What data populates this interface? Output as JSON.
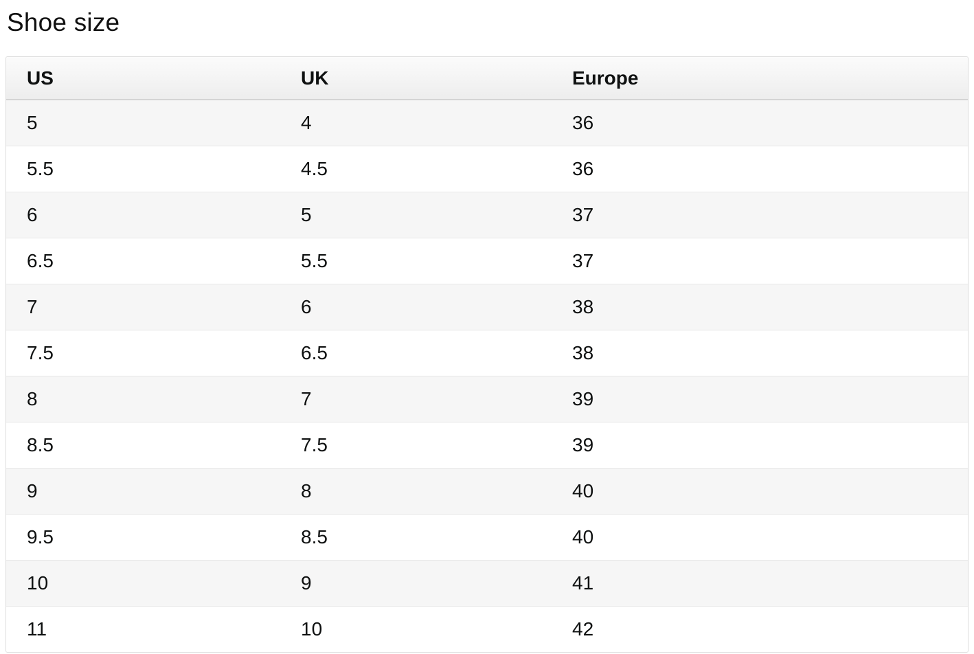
{
  "section": {
    "title": "Shoe size"
  },
  "table": {
    "columns": [
      {
        "key": "us",
        "label": "US"
      },
      {
        "key": "uk",
        "label": "UK"
      },
      {
        "key": "europe",
        "label": "Europe"
      }
    ],
    "rows": [
      {
        "us": "5",
        "uk": "4",
        "europe": "36"
      },
      {
        "us": "5.5",
        "uk": "4.5",
        "europe": "36"
      },
      {
        "us": "6",
        "uk": "5",
        "europe": "37"
      },
      {
        "us": "6.5",
        "uk": "5.5",
        "europe": "37"
      },
      {
        "us": "7",
        "uk": "6",
        "europe": "38"
      },
      {
        "us": "7.5",
        "uk": "6.5",
        "europe": "38"
      },
      {
        "us": "8",
        "uk": "7",
        "europe": "39"
      },
      {
        "us": "8.5",
        "uk": "7.5",
        "europe": "39"
      },
      {
        "us": "9",
        "uk": "8",
        "europe": "40"
      },
      {
        "us": "9.5",
        "uk": "8.5",
        "europe": "40"
      },
      {
        "us": "10",
        "uk": "9",
        "europe": "41"
      },
      {
        "us": "11",
        "uk": "10",
        "europe": "42"
      }
    ]
  },
  "chart_data": {
    "type": "table",
    "title": "Shoe size",
    "columns": [
      "US",
      "UK",
      "Europe"
    ],
    "rows": [
      [
        "5",
        "4",
        "36"
      ],
      [
        "5.5",
        "4.5",
        "36"
      ],
      [
        "6",
        "5",
        "37"
      ],
      [
        "6.5",
        "5.5",
        "37"
      ],
      [
        "7",
        "6",
        "38"
      ],
      [
        "7.5",
        "6.5",
        "38"
      ],
      [
        "8",
        "7",
        "39"
      ],
      [
        "8.5",
        "7.5",
        "39"
      ],
      [
        "9",
        "8",
        "40"
      ],
      [
        "9.5",
        "8.5",
        "40"
      ],
      [
        "10",
        "9",
        "41"
      ],
      [
        "11",
        "10",
        "42"
      ]
    ]
  },
  "colors": {
    "text": "#0f1111",
    "header_bg_top": "#fbfbfb",
    "header_bg_bottom": "#ededed",
    "header_border": "#d4d4d4",
    "row_stripe": "#f6f6f6",
    "row_separator": "#e7e7e7",
    "table_border": "#dddddd",
    "background": "#ffffff"
  }
}
